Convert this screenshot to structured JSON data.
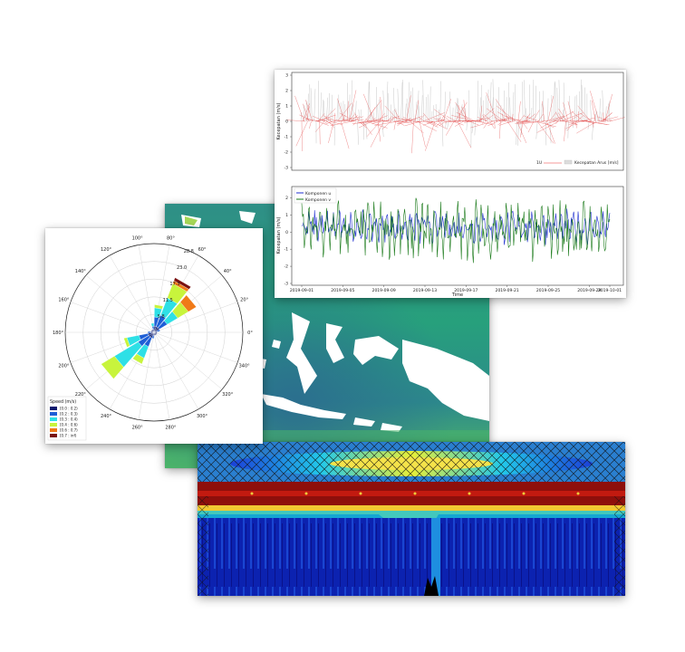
{
  "rose": {
    "angle_labels": [
      "0°",
      "20°",
      "40°",
      "60°",
      "80°",
      "100°",
      "120°",
      "140°",
      "160°",
      "180°",
      "200°",
      "220°",
      "240°",
      "260°",
      "280°",
      "300°",
      "320°",
      "340°"
    ],
    "radial_labels": [
      "5.8",
      "11.5",
      "17.3",
      "23.0",
      "28.8"
    ],
    "legend_title": "Speed (m/s)",
    "legend_items": [
      {
        "label": "[0.0 : 0.2)",
        "color": "#0a1a6e"
      },
      {
        "label": "[0.2 : 0.3)",
        "color": "#1e5fd6"
      },
      {
        "label": "[0.3 : 0.4)",
        "color": "#2ee0e6"
      },
      {
        "label": "[0.4 : 0.6)",
        "color": "#c8f43c"
      },
      {
        "label": "[0.6 : 0.7)",
        "color": "#f07a18"
      },
      {
        "label": "[0.7 : inf)",
        "color": "#7a1010"
      }
    ]
  },
  "arrows_panel": {
    "ylabel": "Kecepatan (m/s)",
    "yticks": [
      "3",
      "2",
      "1",
      "0",
      "-1",
      "-2",
      "-3"
    ],
    "quiver_key": "1U",
    "legend_label": "Kecepatan Arus [m/s]"
  },
  "components_panel": {
    "ylabel": "Kecepatan (m/s)",
    "xlabel": "Time",
    "yticks": [
      "2",
      "1",
      "0",
      "-1",
      "-2",
      "-3"
    ],
    "xticks": [
      "2019-09-01",
      "2019-09-05",
      "2019-09-09",
      "2019-09-13",
      "2019-09-17",
      "2019-09-21",
      "2019-09-25",
      "2019-09-29",
      "2019-10-01"
    ],
    "legend": [
      {
        "label": "Komponen u",
        "color": "#1f2fd0"
      },
      {
        "label": "Komponen v",
        "color": "#1a7a1a"
      }
    ]
  },
  "chart_data": [
    {
      "type": "bar",
      "subtype": "wind-rose",
      "direction_bins_deg": [
        0,
        20,
        40,
        60,
        80,
        100,
        120,
        140,
        160,
        180,
        200,
        220,
        240,
        260,
        280,
        300,
        320,
        340
      ],
      "radial_ticks": [
        5.8,
        11.5,
        17.3,
        23.0,
        28.8
      ],
      "legend_placement": "lower-left",
      "series": [
        {
          "name": "[0.0 : 0.2)",
          "values": [
            1,
            1,
            2,
            2,
            2,
            1,
            1,
            1,
            1,
            1,
            2,
            2,
            2,
            1,
            1,
            1,
            1,
            1
          ]
        },
        {
          "name": "[0.2 : 0.3)",
          "values": [
            0,
            1,
            3,
            4,
            3,
            1,
            0,
            0,
            0,
            1,
            3,
            4,
            3,
            1,
            0,
            0,
            0,
            0
          ]
        },
        {
          "name": "[0.3 : 0.4)",
          "values": [
            0,
            0,
            4,
            6,
            3,
            1,
            0,
            0,
            0,
            0,
            4,
            9,
            4,
            0,
            0,
            0,
            0,
            0
          ]
        },
        {
          "name": "[0.4 : 0.6)",
          "values": [
            0,
            0,
            4,
            5,
            1,
            0,
            0,
            0,
            0,
            0,
            1,
            5,
            2,
            0,
            0,
            0,
            0,
            0
          ]
        },
        {
          "name": "[0.6 : 0.7)",
          "values": [
            0,
            0,
            3,
            1,
            0,
            0,
            0,
            0,
            0,
            0,
            0,
            0,
            0,
            0,
            0,
            0,
            0,
            0
          ]
        },
        {
          "name": "[0.7 : inf)",
          "values": [
            0,
            0,
            0,
            1,
            0,
            0,
            0,
            0,
            0,
            0,
            0,
            0,
            0,
            0,
            0,
            0,
            0,
            0
          ]
        }
      ]
    },
    {
      "type": "line",
      "subtype": "quiver",
      "ylim": [
        -3,
        3
      ],
      "x_range": [
        "2019-09-01",
        "2019-10-01"
      ],
      "legend_placement": "lower-right"
    },
    {
      "type": "line",
      "x_range": [
        "2019-09-01",
        "2019-10-01"
      ],
      "ylim": [
        -3,
        2.5
      ],
      "legend_placement": "top-left",
      "series": [
        {
          "name": "Komponen u",
          "mean": 0.3,
          "amplitude": 0.8
        },
        {
          "name": "Komponen v",
          "mean": 0.1,
          "amplitude": 1.4
        }
      ]
    },
    {
      "type": "heatmap",
      "subtype": "wavelet-scalogram",
      "colormap": "jet"
    },
    {
      "type": "heatmap",
      "subtype": "spatial-map",
      "colormap": "viridis"
    }
  ]
}
